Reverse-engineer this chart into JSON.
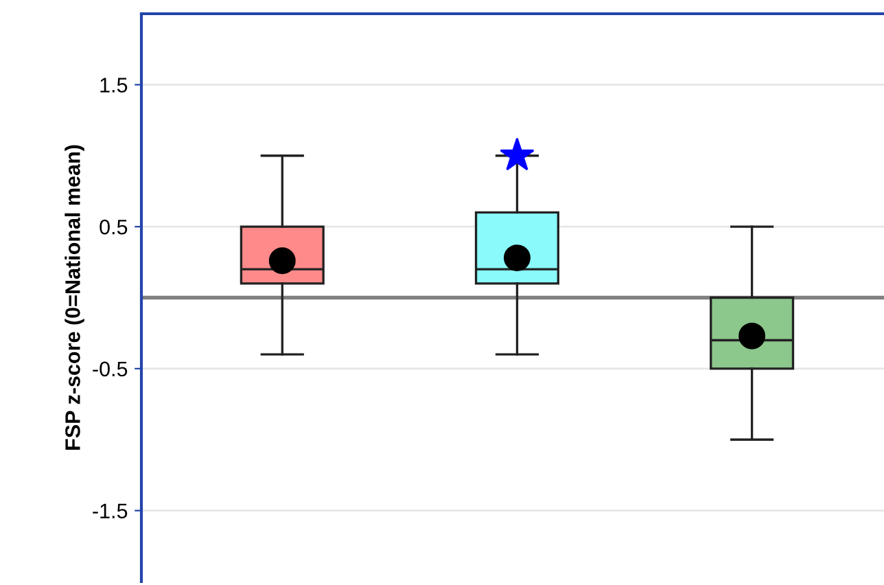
{
  "chart_data": {
    "type": "box",
    "ylabel": "FSP z-score (0=National mean)",
    "categories": [
      null,
      null,
      null
    ],
    "boxes": [
      {
        "low": -0.4,
        "q1": 0.1,
        "median": 0.2,
        "q3": 0.5,
        "high": 1.0,
        "mean": 0.26
      },
      {
        "low": -0.4,
        "q1": 0.1,
        "median": 0.2,
        "q3": 0.6,
        "high": 1.0,
        "mean": 0.28,
        "outliers": [
          1.0
        ]
      },
      {
        "low": -1.0,
        "q1": -0.5,
        "median": -0.3,
        "q3": 0.0,
        "high": 0.5,
        "mean": -0.27
      }
    ],
    "colors": [
      "#ff8a8a",
      "#8afafa",
      "#8cc78c"
    ],
    "ylim": [
      -2,
      2
    ],
    "yticks": [
      {
        "value": 1.5,
        "label": "1.5"
      },
      {
        "value": 0.5,
        "label": "0.5"
      },
      {
        "value": -0.5,
        "label": "-0.5"
      },
      {
        "value": -1.5,
        "label": "-1.5"
      }
    ],
    "grid": "y",
    "marker": "star",
    "ref_lines": [
      {
        "axis": "y",
        "value": 0,
        "color": "#808080"
      }
    ]
  }
}
